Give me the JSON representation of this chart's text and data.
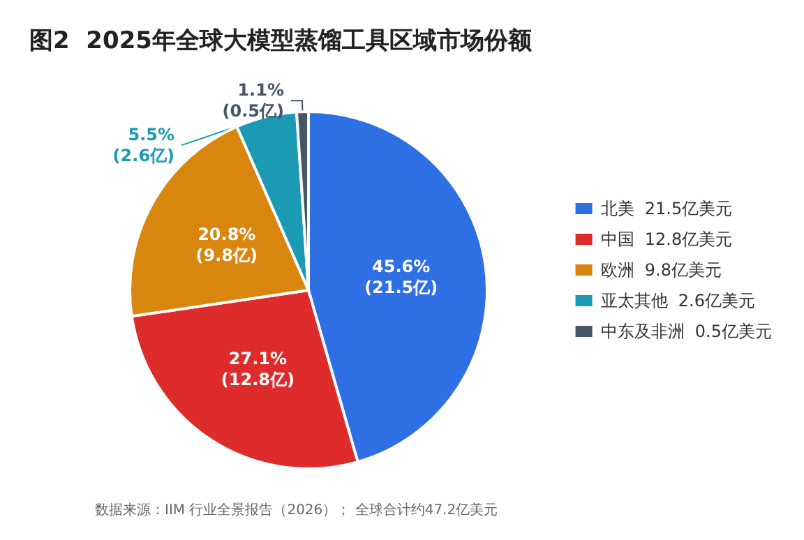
{
  "chart_data": {
    "type": "pie",
    "title": "图2  2025年全球大模型蒸馏工具区域市场份额",
    "categories": [
      "北美  21.5亿美元",
      "中国  12.8亿美元",
      "欧洲  9.8亿美元",
      "亚太其他  2.6亿美元",
      "中东及非洲  0.5亿美元"
    ],
    "values": [
      21.5,
      12.8,
      9.8,
      2.6,
      0.5
    ],
    "colors": [
      "#2f6fe4",
      "#de2b2b",
      "#d9860e",
      "#1b9ab3",
      "#475569"
    ],
    "value_labels": [
      "45.6%\n(21.5亿)",
      "27.1%\n(12.8亿)",
      "20.8%\n(9.8亿)",
      "5.5%\n(2.6亿)",
      "1.1%\n(0.5亿)"
    ],
    "legend": "right",
    "annotations": [
      "数据来源：IIM 行业全景报告（2026）； 全球合计约47.2亿美元"
    ]
  }
}
